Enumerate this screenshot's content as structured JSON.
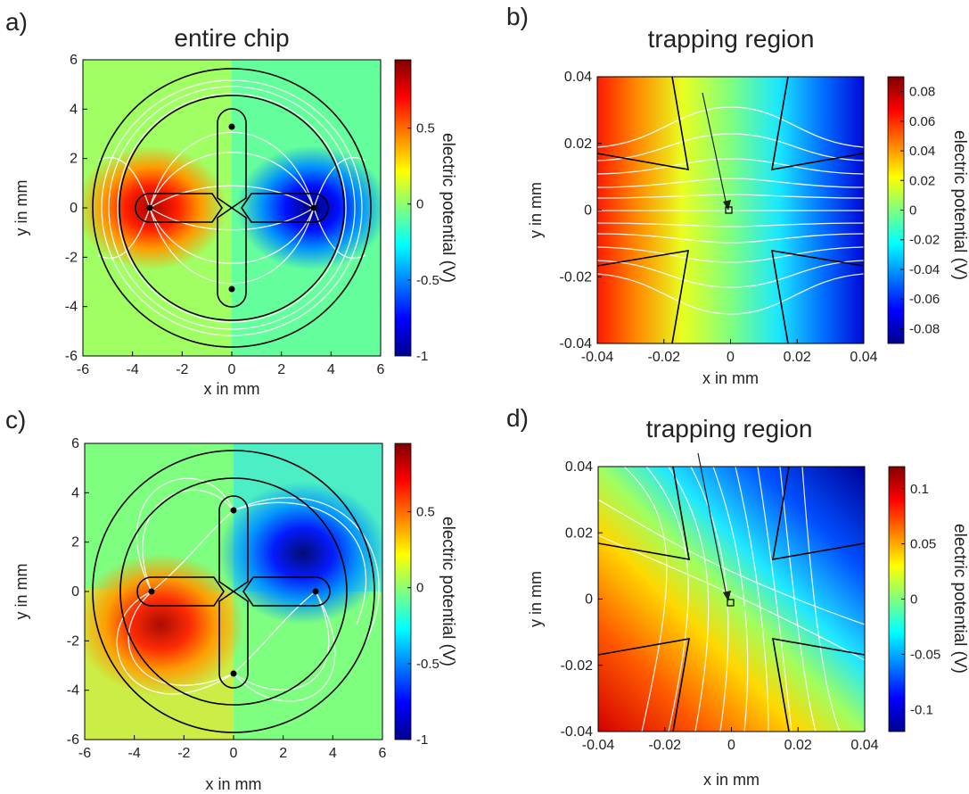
{
  "colormap": [
    "#00008f",
    "#0000ff",
    "#007fff",
    "#00ffff",
    "#7fff7f",
    "#ffff00",
    "#ff7f00",
    "#ff0000",
    "#7f0000"
  ],
  "colors": {
    "field_lines": "#ffffff",
    "electrode_outline": "#000000",
    "marker": "#000000"
  },
  "chart_data": [
    {
      "panel": "a)",
      "type": "heatmap",
      "title": "entire chip",
      "xlabel": "x in mm",
      "ylabel": "y in mm",
      "xlim": [
        -6,
        6
      ],
      "ylim": [
        -6,
        6
      ],
      "xticks": [
        -6,
        -4,
        -2,
        0,
        2,
        4,
        6
      ],
      "yticks": [
        -6,
        -4,
        -2,
        0,
        2,
        4,
        6
      ],
      "colorbar": {
        "label": "electric potential (V)",
        "range": [
          -1,
          0.95
        ],
        "ticks": [
          0.5,
          0,
          -0.5,
          -1
        ]
      },
      "electrodes": "two-electrode (left positive, right negative)",
      "field_lines": "white"
    },
    {
      "panel": "b)",
      "type": "heatmap",
      "title": "trapping region",
      "annotation": "trapping region",
      "xlabel": "x in mm",
      "ylabel": "y in mm",
      "xlim": [
        -0.04,
        0.04
      ],
      "ylim": [
        -0.04,
        0.04
      ],
      "xticks": [
        -0.04,
        -0.02,
        0,
        0.02,
        0.04
      ],
      "yticks": [
        -0.04,
        -0.02,
        0,
        0.02,
        0.04
      ],
      "colorbar": {
        "label": "electric potential (V)",
        "range": [
          -0.09,
          0.09
        ],
        "ticks": [
          0.08,
          0.06,
          0.04,
          0.02,
          0,
          -0.02,
          -0.04,
          -0.06,
          -0.08
        ]
      },
      "field_lines": "white"
    },
    {
      "panel": "c)",
      "type": "heatmap",
      "title": "",
      "xlabel": "x in mm",
      "ylabel": "y in mm",
      "xlim": [
        -6,
        6
      ],
      "ylim": [
        -6,
        6
      ],
      "xticks": [
        -6,
        -4,
        -2,
        0,
        2,
        4,
        6
      ],
      "yticks": [
        -6,
        -4,
        -2,
        0,
        2,
        4,
        6
      ],
      "colorbar": {
        "label": "electric potential (V)",
        "range": [
          -1,
          0.95
        ],
        "ticks": [
          0.5,
          0,
          -0.5,
          -1
        ]
      },
      "electrodes": "four-electrode (left/bottom positive, right/top negative)",
      "field_lines": "white"
    },
    {
      "panel": "d)",
      "type": "heatmap",
      "title": "trapping region",
      "xlabel": "x in mm",
      "ylabel": "y in mm",
      "xlim": [
        -0.04,
        0.04
      ],
      "ylim": [
        -0.04,
        0.04
      ],
      "xticks": [
        -0.04,
        -0.02,
        0,
        0.02,
        0.04
      ],
      "yticks": [
        -0.04,
        -0.02,
        0,
        0.02,
        0.04
      ],
      "colorbar": {
        "label": "electric potential (V)",
        "range": [
          -0.12,
          0.12
        ],
        "ticks": [
          0.1,
          0.05,
          0,
          -0.05,
          -0.1
        ]
      },
      "field_lines": "white"
    }
  ]
}
